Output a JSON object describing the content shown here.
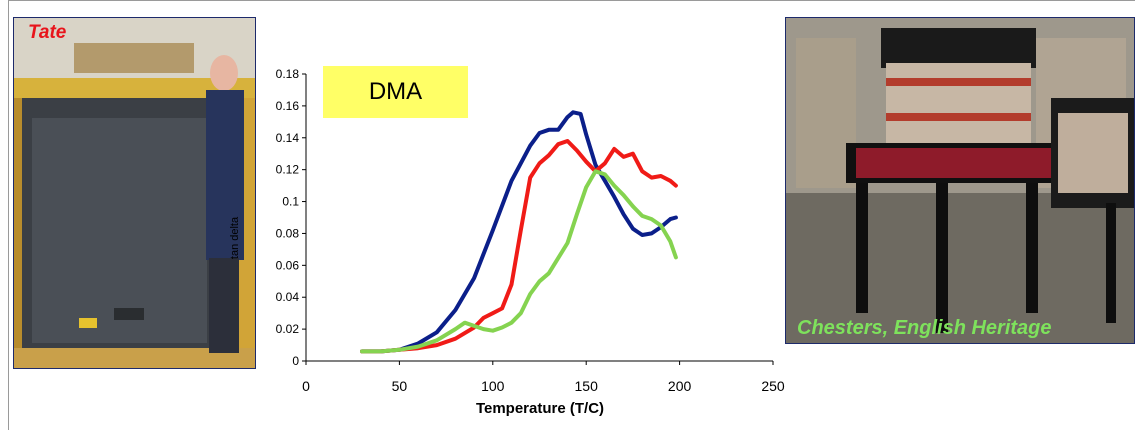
{
  "photos": {
    "left_caption": "Tate",
    "right_caption": "Chesters, English Heritage"
  },
  "chart_data": {
    "type": "line",
    "title": "DMA",
    "xlabel": "Temperature (T/C)",
    "ylabel": "tan delta",
    "xlim": [
      0,
      250
    ],
    "ylim": [
      0,
      0.18
    ],
    "x_ticks": [
      "0",
      "50",
      "100",
      "150",
      "200",
      "250"
    ],
    "y_ticks": [
      "0",
      "0.02",
      "0.04",
      "0.06",
      "0.08",
      "0.1",
      "0.12",
      "0.14",
      "0.16",
      "0.18"
    ],
    "grid": false,
    "series": [
      {
        "color": "#0b1f8a",
        "x": [
          30,
          40,
          50,
          60,
          70,
          80,
          90,
          100,
          110,
          120,
          125,
          130,
          135,
          140,
          143,
          147,
          150,
          155,
          160,
          165,
          170,
          175,
          180,
          185,
          190,
          195,
          198
        ],
        "y": [
          0.006,
          0.006,
          0.007,
          0.011,
          0.018,
          0.032,
          0.052,
          0.082,
          0.113,
          0.135,
          0.143,
          0.145,
          0.145,
          0.153,
          0.156,
          0.155,
          0.142,
          0.123,
          0.113,
          0.103,
          0.092,
          0.083,
          0.079,
          0.08,
          0.084,
          0.089,
          0.09
        ]
      },
      {
        "color": "#f01b17",
        "x": [
          30,
          40,
          50,
          60,
          70,
          80,
          90,
          95,
          100,
          105,
          110,
          115,
          120,
          125,
          130,
          135,
          140,
          145,
          150,
          155,
          160,
          165,
          170,
          175,
          180,
          185,
          190,
          195,
          198
        ],
        "y": [
          0.006,
          0.006,
          0.007,
          0.008,
          0.01,
          0.014,
          0.021,
          0.027,
          0.03,
          0.033,
          0.048,
          0.082,
          0.115,
          0.124,
          0.129,
          0.136,
          0.138,
          0.132,
          0.125,
          0.119,
          0.124,
          0.133,
          0.128,
          0.13,
          0.119,
          0.115,
          0.116,
          0.113,
          0.11
        ]
      },
      {
        "color": "#85d350",
        "x": [
          30,
          40,
          50,
          60,
          70,
          80,
          85,
          90,
          95,
          100,
          105,
          110,
          115,
          120,
          125,
          130,
          140,
          145,
          150,
          155,
          160,
          165,
          170,
          175,
          180,
          185,
          190,
          195,
          198
        ],
        "y": [
          0.006,
          0.006,
          0.007,
          0.009,
          0.013,
          0.02,
          0.024,
          0.022,
          0.02,
          0.019,
          0.021,
          0.024,
          0.03,
          0.042,
          0.05,
          0.055,
          0.074,
          0.092,
          0.109,
          0.119,
          0.117,
          0.11,
          0.104,
          0.097,
          0.091,
          0.089,
          0.085,
          0.075,
          0.065
        ]
      }
    ]
  }
}
